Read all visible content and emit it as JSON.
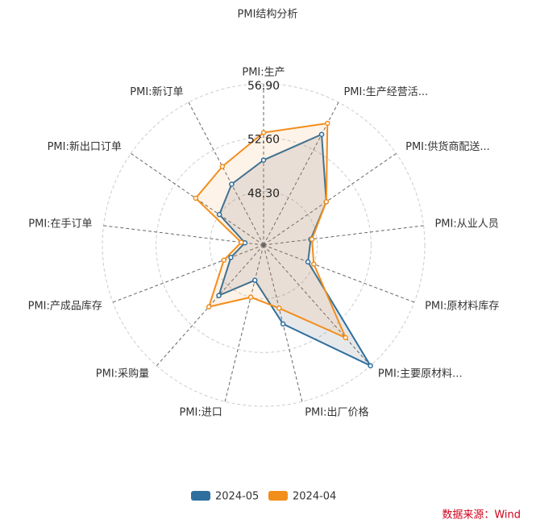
{
  "chart_data": {
    "type": "radar",
    "title": "PMI结构分析",
    "categories": [
      "PMI:生产",
      "PMI:生产经营活...",
      "PMI:供货商配送...",
      "PMI:从业人员",
      "PMI:原材料库存",
      "PMI:主要原材料...",
      "PMI:出厂价格",
      "PMI:进口",
      "PMI:采购量",
      "PMI:产成品库存",
      "PMI:在手订单",
      "PMI:新出口订单",
      "PMI:新订单"
    ],
    "series": [
      {
        "name": "2024-05",
        "color": "#2e6f9e",
        "values": [
          50.8,
          54.0,
          50.1,
          47.8,
          47.8,
          56.9,
          50.5,
          46.9,
          49.4,
          46.8,
          45.5,
          48.3,
          49.5
        ]
      },
      {
        "name": "2024-04",
        "color": "#f28e1c",
        "values": [
          53.0,
          55.0,
          50.1,
          47.9,
          48.3,
          53.9,
          49.2,
          48.3,
          50.6,
          47.4,
          45.8,
          50.6,
          51.1
        ]
      }
    ],
    "ylim": [
      44,
      56.9
    ],
    "yticks": [
      {
        "value": 48.3,
        "label": "48.30"
      },
      {
        "value": 52.6,
        "label": "52.60"
      },
      {
        "value": 56.9,
        "label": "56.90"
      }
    ],
    "grid": true,
    "legend": "bottom",
    "source": "数据来源：Wind"
  }
}
